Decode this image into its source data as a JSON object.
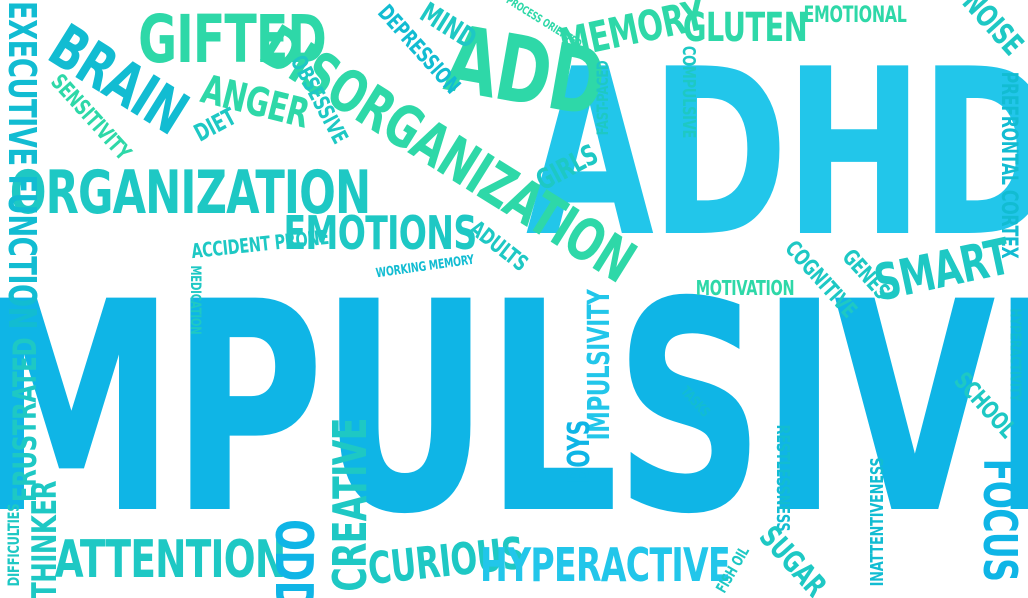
{
  "words": {
    "impulsive": "IMPULSIVE",
    "adhd": "ADHD",
    "add": "ADD",
    "disorganization": "DISORGANIZATION",
    "organization": "ORGANIZATION",
    "gifted": "GIFTED",
    "brain": "BRAIN",
    "anger": "ANGER",
    "diet": "DIET",
    "sensitivity": "SENSITIVITY",
    "obsessive": "OBSESSIVE",
    "depression": "DEPRESSION",
    "mind": "MIND",
    "process_oriented": "PROCESS ORIENTED",
    "memory": "MEMORY",
    "gluten": "GLUTEN",
    "emotional": "EMOTIONAL",
    "noise": "NOISE",
    "prefrontal_cortex": "PREFRONTAL CORTEX",
    "compulsive": "COMPULSIVE",
    "fast_paced": "FAST-PACED",
    "girls": "GIRLS",
    "executive_function": "EXECUTIVE FUNCTION",
    "emotions": "EMOTIONS",
    "accident_prone": "ACCIDENT PRONE",
    "adults": "ADULTS",
    "working_memory": "WORKING MEMORY",
    "medication": "MEDICATION",
    "smart": "SMART",
    "genes": "GENES",
    "cognitive": "COGNITIVE",
    "motivation": "MOTIVATION",
    "hyperactivity": "HYPERACTIVITY",
    "school": "SCHOOL",
    "tasks": "TASKS",
    "impulsivity": "IMPULSIVITY",
    "boys": "BOYS",
    "frustrated": "FRUSTRATED",
    "creative": "CREATIVE",
    "restlessness": "RESTLESSNESS",
    "inattentiveness": "INATTENTIVENESS",
    "focus": "FOCUS",
    "difficulties": "DIFFICULTIES",
    "thinker": "THINKER",
    "attention": "ATTENTION",
    "odd": "ODD",
    "curious": "CURIOUS",
    "hyperactive": "HYPERACTIVE",
    "sugar": "SUGAR",
    "fish_oil": "FISH OIL"
  }
}
